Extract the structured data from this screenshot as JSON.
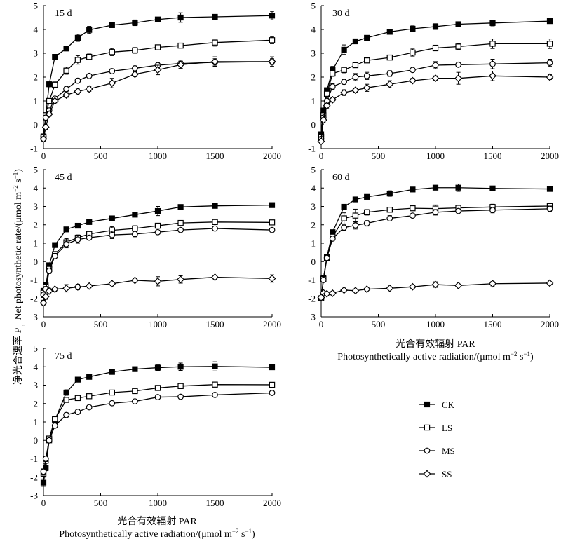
{
  "figure": {
    "y_axis_title_cn": "净光合速率 P",
    "y_axis_title_cn_sub": "n",
    "y_axis_title_en": "Net photosynthetic rate/(μmol m",
    "y_axis_title_en_sup1": "−2",
    "y_axis_title_en_mid": " s",
    "y_axis_title_en_sup2": "−1",
    "y_axis_title_en_end": ")",
    "x_axis_title_cn": "光合有效辐射 PAR",
    "x_axis_title_en": "Photosynthetically active radiation/(μmol m",
    "x_axis_title_en_sup1": "−2",
    "x_axis_title_en_mid": " s",
    "x_axis_title_en_sup2": "−1",
    "x_axis_title_en_end": ")"
  },
  "chart_data": [
    {
      "type": "line",
      "title": "15 d",
      "xlim": [
        0,
        2000
      ],
      "ylim": [
        -1,
        5
      ],
      "x_ticks": [
        0,
        500,
        1000,
        1500,
        2000
      ],
      "y_ticks": [
        -1,
        0,
        1,
        2,
        3,
        4,
        5
      ],
      "x": [
        0,
        20,
        50,
        100,
        200,
        300,
        400,
        600,
        800,
        1000,
        1200,
        1500,
        2000
      ],
      "series": [
        {
          "name": "CK",
          "marker": "filled-square",
          "values": [
            -0.5,
            0.4,
            1.7,
            2.85,
            3.2,
            3.65,
            3.98,
            4.18,
            4.28,
            4.42,
            4.5,
            4.53,
            4.58
          ],
          "errors": [
            0.12,
            0.1,
            0.1,
            0.1,
            0.1,
            0.15,
            0.15,
            0.05,
            0.12,
            0.05,
            0.2,
            0.08,
            0.18
          ]
        },
        {
          "name": "LS",
          "marker": "open-square",
          "values": [
            -0.5,
            0.4,
            1.0,
            1.68,
            2.27,
            2.72,
            2.85,
            3.05,
            3.12,
            3.25,
            3.32,
            3.45,
            3.55
          ],
          "errors": [
            0.1,
            0.1,
            0.1,
            0.12,
            0.15,
            0.18,
            0.12,
            0.15,
            0.12,
            0.05,
            0.08,
            0.15,
            0.15
          ]
        },
        {
          "name": "MS",
          "marker": "open-circle",
          "values": [
            -0.5,
            0.3,
            0.6,
            1.1,
            1.5,
            1.85,
            2.05,
            2.25,
            2.37,
            2.5,
            2.57,
            2.62,
            2.65
          ],
          "errors": [
            0.1,
            0.1,
            0.1,
            0.08,
            0.1,
            0.1,
            0.08,
            0.1,
            0.1,
            0.1,
            0.1,
            0.15,
            0.2
          ]
        },
        {
          "name": "SS",
          "marker": "open-diamond",
          "values": [
            -0.6,
            -0.1,
            0.45,
            1.0,
            1.25,
            1.4,
            1.5,
            1.75,
            2.12,
            2.3,
            2.52,
            2.65,
            2.65
          ],
          "errors": [
            0.1,
            0.1,
            0.1,
            0.08,
            0.1,
            0.1,
            0.1,
            0.2,
            0.1,
            0.2,
            0.15,
            0.2,
            0.12
          ]
        }
      ]
    },
    {
      "type": "line",
      "title": "30 d",
      "xlim": [
        0,
        2000
      ],
      "ylim": [
        -1,
        5
      ],
      "x_ticks": [
        0,
        500,
        1000,
        1500,
        2000
      ],
      "y_ticks": [
        -1,
        0,
        1,
        2,
        3,
        4,
        5
      ],
      "x": [
        0,
        20,
        50,
        100,
        200,
        300,
        400,
        600,
        800,
        1000,
        1200,
        1500,
        2000
      ],
      "series": [
        {
          "name": "CK",
          "marker": "filled-square",
          "values": [
            -0.4,
            0.6,
            1.45,
            2.3,
            3.15,
            3.5,
            3.65,
            3.9,
            4.03,
            4.12,
            4.22,
            4.27,
            4.35
          ],
          "errors": [
            0.1,
            0.1,
            0.1,
            0.15,
            0.2,
            0.08,
            0.08,
            0.08,
            0.12,
            0.12,
            0.05,
            0.12,
            0.08
          ]
        },
        {
          "name": "LS",
          "marker": "open-square",
          "values": [
            -0.5,
            0.4,
            1.3,
            2.15,
            2.3,
            2.5,
            2.7,
            2.82,
            3.03,
            3.22,
            3.28,
            3.4,
            3.4
          ],
          "errors": [
            0.1,
            0.1,
            0.1,
            0.12,
            0.12,
            0.1,
            0.08,
            0.1,
            0.15,
            0.12,
            0.12,
            0.2,
            0.2
          ]
        },
        {
          "name": "MS",
          "marker": "open-circle",
          "values": [
            -0.6,
            0.3,
            1.0,
            1.6,
            1.8,
            2.0,
            2.05,
            2.15,
            2.3,
            2.5,
            2.52,
            2.55,
            2.6
          ],
          "errors": [
            0.1,
            0.1,
            0.1,
            0.12,
            0.1,
            0.15,
            0.15,
            0.12,
            0.08,
            0.15,
            0.05,
            0.2,
            0.15
          ]
        },
        {
          "name": "SS",
          "marker": "open-diamond",
          "values": [
            -0.7,
            0.2,
            0.8,
            1.05,
            1.35,
            1.45,
            1.55,
            1.7,
            1.85,
            1.95,
            1.95,
            2.05,
            2.0
          ],
          "errors": [
            0.1,
            0.1,
            0.1,
            0.1,
            0.12,
            0.08,
            0.15,
            0.15,
            0.1,
            0.1,
            0.25,
            0.2,
            0.1
          ]
        }
      ]
    },
    {
      "type": "line",
      "title": "45 d",
      "xlim": [
        0,
        2000
      ],
      "ylim": [
        -3,
        5
      ],
      "x_ticks": [
        0,
        500,
        1000,
        1500,
        2000
      ],
      "y_ticks": [
        -3,
        -2,
        -1,
        0,
        1,
        2,
        3,
        4,
        5
      ],
      "x": [
        0,
        20,
        50,
        100,
        200,
        300,
        400,
        600,
        800,
        1000,
        1200,
        1500,
        2000
      ],
      "series": [
        {
          "name": "CK",
          "marker": "filled-square",
          "values": [
            -1.6,
            -1.3,
            -0.2,
            0.9,
            1.75,
            1.95,
            2.15,
            2.35,
            2.55,
            2.75,
            2.97,
            3.03,
            3.07
          ],
          "errors": [
            0.15,
            0.15,
            0.1,
            0.1,
            0.08,
            0.1,
            0.08,
            0.1,
            0.08,
            0.25,
            0.1,
            0.08,
            0.12
          ]
        },
        {
          "name": "LS",
          "marker": "open-square",
          "values": [
            -1.7,
            -1.4,
            -0.4,
            0.4,
            1.05,
            1.3,
            1.5,
            1.7,
            1.8,
            1.95,
            2.1,
            2.15,
            2.13
          ],
          "errors": [
            0.15,
            0.15,
            0.15,
            0.15,
            0.2,
            0.15,
            0.1,
            0.2,
            0.15,
            0.05,
            0.1,
            0.1,
            0.05
          ]
        },
        {
          "name": "MS",
          "marker": "open-circle",
          "values": [
            -1.8,
            -1.5,
            -0.5,
            0.3,
            0.95,
            1.2,
            1.3,
            1.45,
            1.5,
            1.6,
            1.72,
            1.8,
            1.72
          ],
          "errors": [
            0.15,
            0.15,
            0.15,
            0.15,
            0.2,
            0.2,
            0.1,
            0.2,
            0.15,
            0.05,
            0.08,
            0.1,
            0.05
          ]
        },
        {
          "name": "SS",
          "marker": "open-diamond",
          "values": [
            -2.25,
            -1.9,
            -1.6,
            -1.5,
            -1.45,
            -1.38,
            -1.33,
            -1.2,
            -1.02,
            -1.07,
            -0.97,
            -0.85,
            -0.92
          ],
          "errors": [
            0.15,
            0.15,
            0.15,
            0.12,
            0.2,
            0.15,
            0.1,
            0.1,
            0.1,
            0.25,
            0.2,
            0.1,
            0.2
          ]
        }
      ]
    },
    {
      "type": "line",
      "title": "60 d",
      "xlim": [
        0,
        2000
      ],
      "ylim": [
        -3,
        5
      ],
      "x_ticks": [
        0,
        500,
        1000,
        1500,
        2000
      ],
      "y_ticks": [
        -3,
        -2,
        -1,
        0,
        1,
        2,
        3,
        4,
        5
      ],
      "x": [
        0,
        20,
        50,
        100,
        200,
        300,
        400,
        600,
        800,
        1000,
        1200,
        1500,
        2000
      ],
      "series": [
        {
          "name": "CK",
          "marker": "filled-square",
          "values": [
            -2.0,
            -0.9,
            0.25,
            1.6,
            2.98,
            3.38,
            3.52,
            3.7,
            3.92,
            4.02,
            4.02,
            3.98,
            3.95
          ],
          "errors": [
            0.1,
            0.1,
            0.1,
            0.1,
            0.1,
            0.1,
            0.1,
            0.15,
            0.08,
            0.08,
            0.2,
            0.1,
            0.1
          ]
        },
        {
          "name": "LS",
          "marker": "open-square",
          "values": [
            -2.0,
            -0.95,
            0.2,
            1.35,
            2.35,
            2.5,
            2.68,
            2.82,
            2.9,
            2.88,
            2.92,
            2.97,
            3.02
          ],
          "errors": [
            0.1,
            0.1,
            0.1,
            0.15,
            0.3,
            0.35,
            0.15,
            0.1,
            0.08,
            0.2,
            0.15,
            0.15,
            0.15
          ]
        },
        {
          "name": "MS",
          "marker": "open-circle",
          "values": [
            -2.0,
            -1.0,
            0.2,
            1.25,
            1.85,
            1.97,
            2.08,
            2.35,
            2.5,
            2.68,
            2.75,
            2.8,
            2.87
          ],
          "errors": [
            0.1,
            0.1,
            0.1,
            0.12,
            0.15,
            0.2,
            0.15,
            0.15,
            0.1,
            0.15,
            0.1,
            0.15,
            0.15
          ]
        },
        {
          "name": "SS",
          "marker": "open-diamond",
          "values": [
            -1.95,
            -1.7,
            -1.75,
            -1.72,
            -1.55,
            -1.58,
            -1.5,
            -1.45,
            -1.37,
            -1.25,
            -1.3,
            -1.2,
            -1.17
          ],
          "errors": [
            0.1,
            0.1,
            0.1,
            0.1,
            0.08,
            0.08,
            0.08,
            0.08,
            0.1,
            0.15,
            0.08,
            0.12,
            0.08
          ]
        }
      ]
    },
    {
      "type": "line",
      "title": "75 d",
      "xlim": [
        0,
        2000
      ],
      "ylim": [
        -3,
        5
      ],
      "x_ticks": [
        0,
        500,
        1000,
        1500,
        2000
      ],
      "y_ticks": [
        -3,
        -2,
        -1,
        0,
        1,
        2,
        3,
        4,
        5
      ],
      "x": [
        0,
        20,
        50,
        100,
        200,
        300,
        400,
        600,
        800,
        1000,
        1200,
        1500,
        2000
      ],
      "series": [
        {
          "name": "CK",
          "marker": "filled-square",
          "values": [
            -2.3,
            -1.5,
            0.0,
            1.1,
            2.6,
            3.3,
            3.45,
            3.72,
            3.87,
            3.95,
            4.0,
            4.02,
            3.97
          ],
          "errors": [
            0.2,
            0.15,
            0.1,
            0.1,
            0.15,
            0.1,
            0.1,
            0.12,
            0.1,
            0.15,
            0.2,
            0.25,
            0.1
          ]
        },
        {
          "name": "LS",
          "marker": "open-square",
          "values": [
            -1.8,
            -1.1,
            0.1,
            1.15,
            2.2,
            2.3,
            2.4,
            2.6,
            2.68,
            2.85,
            2.95,
            3.03,
            3.02
          ],
          "errors": [
            0.15,
            0.15,
            0.1,
            0.1,
            0.1,
            0.1,
            0.08,
            0.08,
            0.12,
            0.08,
            0.05,
            0.08,
            0.05
          ]
        },
        {
          "name": "MS",
          "marker": "open-circle",
          "values": [
            -1.7,
            -1.0,
            0.0,
            0.8,
            1.38,
            1.55,
            1.8,
            2.02,
            2.12,
            2.35,
            2.37,
            2.47,
            2.58
          ],
          "errors": [
            0.15,
            0.15,
            0.1,
            0.1,
            0.12,
            0.12,
            0.08,
            0.08,
            0.1,
            0.1,
            0.05,
            0.08,
            0.1
          ]
        }
      ]
    }
  ],
  "legend": {
    "placement": "right of 75 d panel",
    "items": [
      {
        "label": "CK",
        "marker": "filled-square"
      },
      {
        "label": "LS",
        "marker": "open-square"
      },
      {
        "label": "MS",
        "marker": "open-circle"
      },
      {
        "label": "SS",
        "marker": "open-diamond"
      }
    ]
  }
}
